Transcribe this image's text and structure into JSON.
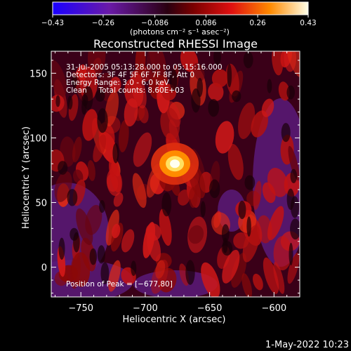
{
  "chart_data": {
    "type": "heatmap",
    "title": "Reconstructed RHESSI Image",
    "xlabel": "Heliocentric X (arcsec)",
    "ylabel": "Heliocentric Y (arcsec)",
    "xlim": [
      -773,
      -580
    ],
    "ylim": [
      -23,
      167
    ],
    "x_ticks": [
      -750,
      -700,
      -650,
      -600
    ],
    "y_ticks": [
      0,
      50,
      100,
      150
    ],
    "x_tick_labels": [
      "−750",
      "−700",
      "−650",
      "−600"
    ],
    "y_tick_labels": [
      "0",
      "50",
      "100",
      "150"
    ],
    "colorbar": {
      "min": -0.43,
      "max": 0.43,
      "ticks": [
        -0.43,
        -0.26,
        -0.086,
        0.086,
        0.26,
        0.43
      ],
      "tick_labels": [
        "−0.43",
        "−0.26",
        "−0.086",
        "0.086",
        "0.26",
        "0.43"
      ],
      "unit_label": "(photons cm⁻² s⁻¹ asec⁻²)"
    },
    "annotations": [
      "31-Jul-2005 05:13:28.000 to 05:15:16.000",
      "Detectors: 3F 4F 5F 6F 7F 8F, Att 0",
      "Energy Range: 3.0 - 6.0 keV",
      "Clean     Total counts: 8.60E+03"
    ],
    "peak_label": "Position of Peak = [−677,80]",
    "peak": {
      "x": -677,
      "y": 80,
      "value": 0.43
    }
  },
  "footer": {
    "timestamp": "1-May-2022 10:23"
  }
}
